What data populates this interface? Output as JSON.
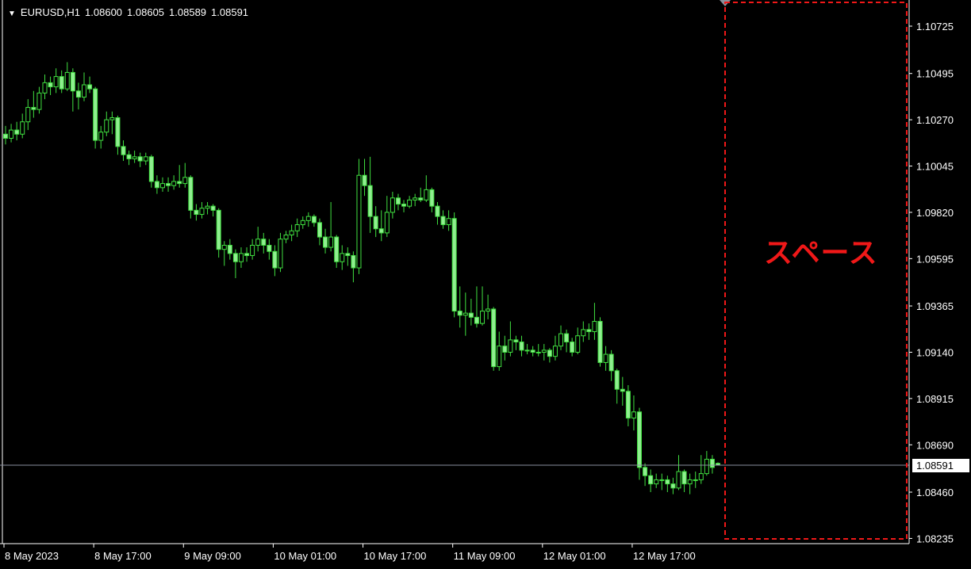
{
  "header": {
    "menu_icon": "triangle-down-icon",
    "symbol": "EURUSD,H1",
    "open": "1.08600",
    "high": "1.08605",
    "low": "1.08589",
    "close": "1.08591"
  },
  "annotation": {
    "label": "スペース",
    "color": "#f01818"
  },
  "colors": {
    "background": "#000000",
    "candle": "#40e040",
    "candle_fill": "#90ee90",
    "price_line": "#8a90a0",
    "axis": "#ffffff"
  },
  "chart_data": {
    "type": "candlestick",
    "symbol": "EURUSD",
    "timeframe": "H1",
    "current_price": "1.08591",
    "y_ticks": [
      "1.10725",
      "1.10495",
      "1.10270",
      "1.10045",
      "1.09820",
      "1.09595",
      "1.09365",
      "1.09140",
      "1.08915",
      "1.08690",
      "1.08460",
      "1.08235"
    ],
    "ylim": [
      1.08235,
      1.10815
    ],
    "x_ticks": [
      {
        "label": "8 May 2023",
        "bar": 0
      },
      {
        "label": "8 May 17:00",
        "bar": 16
      },
      {
        "label": "9 May 09:00",
        "bar": 32
      },
      {
        "label": "10 May 01:00",
        "bar": 48
      },
      {
        "label": "10 May 17:00",
        "bar": 64
      },
      {
        "label": "11 May 09:00",
        "bar": 80
      },
      {
        "label": "12 May 01:00",
        "bar": 96
      },
      {
        "label": "12 May 17:00",
        "bar": 112
      }
    ],
    "ohlc": [
      [
        1.102,
        1.1024,
        1.1015,
        1.1018
      ],
      [
        1.1018,
        1.1025,
        1.1016,
        1.1022
      ],
      [
        1.1022,
        1.1026,
        1.1017,
        1.102
      ],
      [
        1.102,
        1.103,
        1.1018,
        1.1026
      ],
      [
        1.1026,
        1.1037,
        1.1022,
        1.1033
      ],
      [
        1.1033,
        1.1041,
        1.1028,
        1.1032
      ],
      [
        1.1032,
        1.1043,
        1.103,
        1.104
      ],
      [
        1.104,
        1.1049,
        1.1037,
        1.1045
      ],
      [
        1.1045,
        1.1048,
        1.1039,
        1.1043
      ],
      [
        1.1043,
        1.1052,
        1.104,
        1.1048
      ],
      [
        1.1048,
        1.1051,
        1.104,
        1.1042
      ],
      [
        1.1042,
        1.1055,
        1.1041,
        1.105
      ],
      [
        1.105,
        1.1052,
        1.1031,
        1.1041
      ],
      [
        1.1041,
        1.1045,
        1.1032,
        1.1038
      ],
      [
        1.1038,
        1.105,
        1.1036,
        1.1044
      ],
      [
        1.1044,
        1.1048,
        1.104,
        1.1042
      ],
      [
        1.1042,
        1.1043,
        1.1013,
        1.1017
      ],
      [
        1.1017,
        1.1024,
        1.1013,
        1.1021
      ],
      [
        1.1021,
        1.1031,
        1.1019,
        1.1027
      ],
      [
        1.1027,
        1.1031,
        1.102,
        1.1028
      ],
      [
        1.1028,
        1.1029,
        1.101,
        1.1014
      ],
      [
        1.1014,
        1.1017,
        1.1007,
        1.101
      ],
      [
        1.101,
        1.1012,
        1.1005,
        1.1008
      ],
      [
        1.1008,
        1.1012,
        1.1006,
        1.1009
      ],
      [
        1.1009,
        1.1011,
        1.1004,
        1.1007
      ],
      [
        1.1007,
        1.1011,
        1.1005,
        1.1009
      ],
      [
        1.1009,
        1.101,
        1.0994,
        1.0997
      ],
      [
        1.0997,
        1.1,
        1.0991,
        1.0994
      ],
      [
        1.0994,
        1.0999,
        1.0992,
        1.0996
      ],
      [
        1.0996,
        1.0999,
        1.0992,
        1.0995
      ],
      [
        1.0995,
        1.1,
        1.0993,
        1.0997
      ],
      [
        1.0997,
        1.1005,
        1.0994,
        1.0996
      ],
      [
        1.0996,
        1.1006,
        1.0994,
        1.0999
      ],
      [
        1.0999,
        1.1,
        1.0979,
        1.0983
      ],
      [
        1.0983,
        1.0986,
        1.0978,
        1.0981
      ],
      [
        1.0981,
        1.0987,
        1.0979,
        1.0984
      ],
      [
        1.0984,
        1.0987,
        1.0981,
        1.0985
      ],
      [
        1.0985,
        1.0986,
        1.098,
        1.0983
      ],
      [
        1.0983,
        1.0984,
        1.096,
        1.0964
      ],
      [
        1.0964,
        1.0968,
        1.0956,
        1.0966
      ],
      [
        1.0966,
        1.0969,
        1.0959,
        1.0962
      ],
      [
        1.0962,
        1.0964,
        1.095,
        1.0958
      ],
      [
        1.0958,
        1.0965,
        1.0955,
        1.0962
      ],
      [
        1.0962,
        1.0965,
        1.0958,
        1.0961
      ],
      [
        1.0961,
        1.0969,
        1.0959,
        1.0966
      ],
      [
        1.0966,
        1.0975,
        1.0963,
        1.0969
      ],
      [
        1.0969,
        1.0972,
        1.0962,
        1.0966
      ],
      [
        1.0966,
        1.0969,
        1.0959,
        1.0963
      ],
      [
        1.0963,
        1.0966,
        1.0951,
        1.0955
      ],
      [
        1.0955,
        1.0972,
        1.0953,
        1.0969
      ],
      [
        1.0969,
        1.0973,
        1.0967,
        1.0971
      ],
      [
        1.0971,
        1.0976,
        1.0968,
        1.0973
      ],
      [
        1.0973,
        1.0979,
        1.097,
        1.0976
      ],
      [
        1.0976,
        1.098,
        1.0974,
        1.0978
      ],
      [
        1.0978,
        1.0982,
        1.0975,
        1.098
      ],
      [
        1.098,
        1.0981,
        1.0975,
        1.0977
      ],
      [
        1.0977,
        1.0979,
        1.0966,
        1.097
      ],
      [
        1.097,
        1.0974,
        1.0962,
        1.0965
      ],
      [
        1.0965,
        1.0987,
        1.0963,
        1.097
      ],
      [
        1.097,
        1.0971,
        1.0955,
        1.0958
      ],
      [
        1.0958,
        1.0966,
        1.0954,
        1.0962
      ],
      [
        1.0962,
        1.0965,
        1.0956,
        1.0961
      ],
      [
        1.0961,
        1.0963,
        1.0948,
        1.0955
      ],
      [
        1.0955,
        1.1008,
        1.0952,
        1.1
      ],
      [
        1.1,
        1.1008,
        1.099,
        1.0995
      ],
      [
        1.0995,
        1.1009,
        1.0972,
        1.098
      ],
      [
        1.098,
        1.0985,
        1.097,
        1.0974
      ],
      [
        1.0974,
        1.0983,
        1.0968,
        1.0972
      ],
      [
        1.0972,
        1.099,
        1.097,
        1.0982
      ],
      [
        1.0982,
        1.0992,
        1.0979,
        1.0989
      ],
      [
        1.0989,
        1.0991,
        1.0983,
        1.0986
      ],
      [
        1.0986,
        1.0988,
        1.0982,
        1.0985
      ],
      [
        1.0985,
        1.099,
        1.0984,
        1.0988
      ],
      [
        1.0988,
        1.0991,
        1.0985,
        1.0989
      ],
      [
        1.0989,
        1.0994,
        1.0987,
        1.0988
      ],
      [
        1.0988,
        1.1,
        1.0987,
        1.0993
      ],
      [
        1.0993,
        1.0994,
        1.0982,
        1.0985
      ],
      [
        1.0985,
        1.0987,
        1.0976,
        1.098
      ],
      [
        1.098,
        1.0983,
        1.0974,
        1.0976
      ],
      [
        1.0976,
        1.0983,
        1.0973,
        1.0979
      ],
      [
        1.0979,
        1.0982,
        1.0931,
        1.0934
      ],
      [
        1.0934,
        1.0946,
        1.0926,
        1.0932
      ],
      [
        1.0932,
        1.0943,
        1.0922,
        1.0933
      ],
      [
        1.0933,
        1.094,
        1.0927,
        1.0931
      ],
      [
        1.0931,
        1.0946,
        1.0926,
        1.0928
      ],
      [
        1.0928,
        1.0946,
        1.0927,
        1.0934
      ],
      [
        1.0934,
        1.0942,
        1.093,
        1.0935
      ],
      [
        1.0935,
        1.0936,
        1.0905,
        1.0907
      ],
      [
        1.0907,
        1.0924,
        1.0905,
        1.0917
      ],
      [
        1.0917,
        1.0922,
        1.091,
        1.0914
      ],
      [
        1.0914,
        1.0929,
        1.0912,
        1.092
      ],
      [
        1.092,
        1.0922,
        1.0915,
        1.0919
      ],
      [
        1.0919,
        1.0922,
        1.0912,
        1.0915
      ],
      [
        1.0915,
        1.0918,
        1.0913,
        1.0915
      ],
      [
        1.0915,
        1.0917,
        1.0912,
        1.0914
      ],
      [
        1.0914,
        1.0918,
        1.0912,
        1.0914
      ],
      [
        1.0914,
        1.0918,
        1.091,
        1.0915
      ],
      [
        1.0915,
        1.0916,
        1.0909,
        1.0912
      ],
      [
        1.0912,
        1.0922,
        1.091,
        1.0917
      ],
      [
        1.0917,
        1.0927,
        1.0915,
        1.0923
      ],
      [
        1.0923,
        1.0925,
        1.0914,
        1.0919
      ],
      [
        1.0919,
        1.0921,
        1.0912,
        1.0914
      ],
      [
        1.0914,
        1.0926,
        1.0913,
        1.0922
      ],
      [
        1.0922,
        1.0929,
        1.0919,
        1.0925
      ],
      [
        1.0925,
        1.0928,
        1.092,
        1.0924
      ],
      [
        1.0924,
        1.0938,
        1.092,
        1.0929
      ],
      [
        1.0929,
        1.0931,
        1.0907,
        1.0909
      ],
      [
        1.0909,
        1.0917,
        1.0905,
        1.0913
      ],
      [
        1.0913,
        1.0915,
        1.09,
        1.0905
      ],
      [
        1.0905,
        1.0906,
        1.0889,
        1.0896
      ],
      [
        1.0896,
        1.0902,
        1.0888,
        1.0895
      ],
      [
        1.0895,
        1.0898,
        1.0878,
        1.0882
      ],
      [
        1.0882,
        1.0893,
        1.0876,
        1.0885
      ],
      [
        1.0885,
        1.0887,
        1.0852,
        1.0858
      ],
      [
        1.0858,
        1.086,
        1.0849,
        1.0854
      ],
      [
        1.0854,
        1.0857,
        1.0846,
        1.085
      ],
      [
        1.085,
        1.0855,
        1.0848,
        1.0852
      ],
      [
        1.0852,
        1.0855,
        1.0847,
        1.0852
      ],
      [
        1.0852,
        1.0854,
        1.0846,
        1.085
      ],
      [
        1.085,
        1.0853,
        1.0845,
        1.0848
      ],
      [
        1.0848,
        1.0864,
        1.0847,
        1.0856
      ],
      [
        1.0856,
        1.0857,
        1.0846,
        1.085
      ],
      [
        1.085,
        1.0855,
        1.0845,
        1.0852
      ],
      [
        1.0852,
        1.0856,
        1.0848,
        1.0852
      ],
      [
        1.0852,
        1.0864,
        1.085,
        1.0855
      ],
      [
        1.0855,
        1.0866,
        1.0854,
        1.0862
      ],
      [
        1.0862,
        1.0864,
        1.0855,
        1.0858
      ],
      [
        1.086,
        1.08605,
        1.08589,
        1.08591
      ]
    ]
  }
}
